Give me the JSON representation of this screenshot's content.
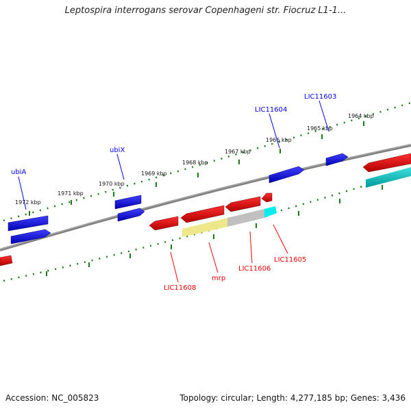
{
  "title": "Leptospira interrogans serovar Copenhageni str. Fiocruz L1-1...",
  "footer": {
    "accession": "Accession: NC_005823",
    "summary": "Topology: circular; Length: 4,277,185 bp; Genes: 3,436"
  },
  "colors": {
    "forward_strand": "#0000ee",
    "reverse_strand": "#ee0000",
    "ticks": "#1a7a1a",
    "backbone": "#808080",
    "cyan_feature": "#00cccc",
    "yellow_feature": "#eee88a",
    "grey_feature": "#c0c0c0"
  },
  "scale_labels": [
    "1972 kbp",
    "1971 kbp",
    "1970 kbp",
    "1969 kbp",
    "1968 kbp",
    "1967 kbp",
    "1966 kbp",
    "1965 kbp",
    "1964 kbp"
  ],
  "gene_labels": {
    "forward": [
      "ubiA",
      "ubiX",
      "LIC11604",
      "LIC11603"
    ],
    "reverse": [
      "LIC11608",
      "mrp",
      "LIC11606",
      "LIC11605"
    ]
  }
}
